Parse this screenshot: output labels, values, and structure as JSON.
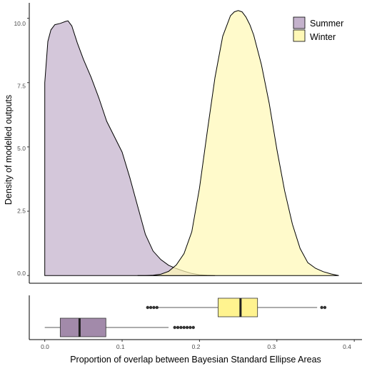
{
  "chart_data": {
    "type": "area",
    "xlabel": "Proportion of overlap between Bayesian Standard Ellipse Areas",
    "ylabel": "Density of modelled outputs",
    "xlim": [
      -0.02,
      0.41
    ],
    "ylim": [
      -0.3,
      10.6
    ],
    "x_ticks": [
      "0.0",
      "0.1",
      "0.2",
      "0.3",
      "0.4"
    ],
    "y_ticks": [
      "0.0",
      "2.5",
      "5.0",
      "7.5",
      "10.0"
    ],
    "grid": false,
    "legend_position": "top-right",
    "series": [
      {
        "name": "Summer",
        "color": "#c4b2cc",
        "density": {
          "x": [
            0.0,
            0.0,
            0.004,
            0.008,
            0.013,
            0.02,
            0.027,
            0.03,
            0.035,
            0.042,
            0.05,
            0.06,
            0.07,
            0.08,
            0.09,
            0.1,
            0.11,
            0.12,
            0.13,
            0.14,
            0.15,
            0.16,
            0.17,
            0.18,
            0.19,
            0.2,
            0.21,
            0.22
          ],
          "y": [
            0.0,
            7.5,
            9.1,
            9.55,
            9.75,
            9.8,
            9.88,
            9.9,
            9.7,
            9.05,
            8.4,
            7.7,
            6.9,
            6.0,
            5.4,
            4.8,
            3.8,
            2.7,
            1.6,
            0.95,
            0.62,
            0.4,
            0.27,
            0.17,
            0.08,
            0.03,
            0.01,
            0.0
          ]
        },
        "box": {
          "min": 0.0,
          "q1": 0.02,
          "median": 0.045,
          "q3": 0.079,
          "max": 0.16,
          "outliers": [
            0.168,
            0.172,
            0.176,
            0.18,
            0.184,
            0.188,
            0.192
          ]
        }
      },
      {
        "name": "Winter",
        "color": "#fff8b7",
        "density": {
          "x": [
            0.12,
            0.13,
            0.14,
            0.15,
            0.16,
            0.17,
            0.18,
            0.19,
            0.2,
            0.21,
            0.22,
            0.23,
            0.24,
            0.245,
            0.25,
            0.255,
            0.26,
            0.265,
            0.27,
            0.28,
            0.29,
            0.3,
            0.31,
            0.32,
            0.33,
            0.34,
            0.35,
            0.36,
            0.37,
            0.38
          ],
          "y": [
            0.0,
            0.0,
            0.01,
            0.05,
            0.16,
            0.41,
            0.85,
            1.7,
            3.4,
            5.6,
            7.7,
            9.3,
            10.1,
            10.25,
            10.3,
            10.25,
            10.05,
            9.75,
            9.35,
            8.2,
            6.7,
            4.9,
            3.3,
            2.0,
            1.05,
            0.5,
            0.28,
            0.15,
            0.06,
            0.0
          ]
        },
        "box": {
          "min": 0.142,
          "q1": 0.224,
          "median": 0.253,
          "q3": 0.275,
          "max": 0.352,
          "outliers": [
            0.133,
            0.137,
            0.141,
            0.145,
            0.358,
            0.362
          ]
        }
      }
    ]
  }
}
